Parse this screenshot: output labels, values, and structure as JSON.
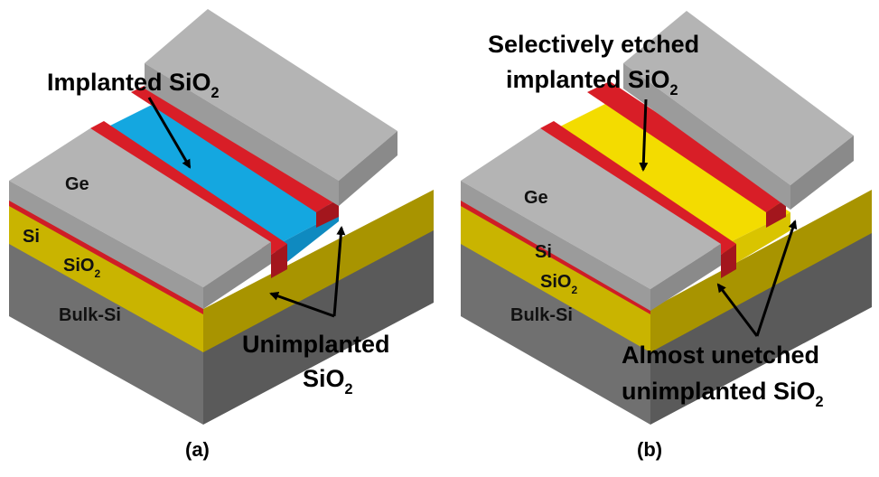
{
  "panel_a": {
    "caption": "(a)",
    "layers": {
      "ge": "Ge",
      "si": "Si",
      "sio2": "SiO",
      "sio2_sub": "2",
      "bulk": "Bulk-Si"
    },
    "callout_top": {
      "text": "Implanted SiO",
      "sub": "2"
    },
    "callout_bottom": {
      "line1": "Unimplanted",
      "line2": "SiO",
      "line2_sub": "2"
    }
  },
  "panel_b": {
    "caption": "(b)",
    "layers": {
      "ge": "Ge",
      "si": "Si",
      "sio2": "SiO",
      "sio2_sub": "2",
      "bulk": "Bulk-Si"
    },
    "callout_top": {
      "line1": "Selectively etched",
      "line2": "implanted SiO",
      "line2_sub": "2"
    },
    "callout_bottom": {
      "line1": "Almost unetched",
      "line2": "unimplanted SiO",
      "line2_sub": "2"
    }
  },
  "colors": {
    "ge_top": "#b4b4b4",
    "ge_side": "#8a8a8a",
    "si_red": "#d81e27",
    "oxide_yellow": "#cdb600",
    "implanted_blue": "#14a7e0",
    "etched_yellow": "#f3dc00",
    "bulk_front": "#6e6e6e",
    "bulk_side": "#5e5e5e"
  }
}
